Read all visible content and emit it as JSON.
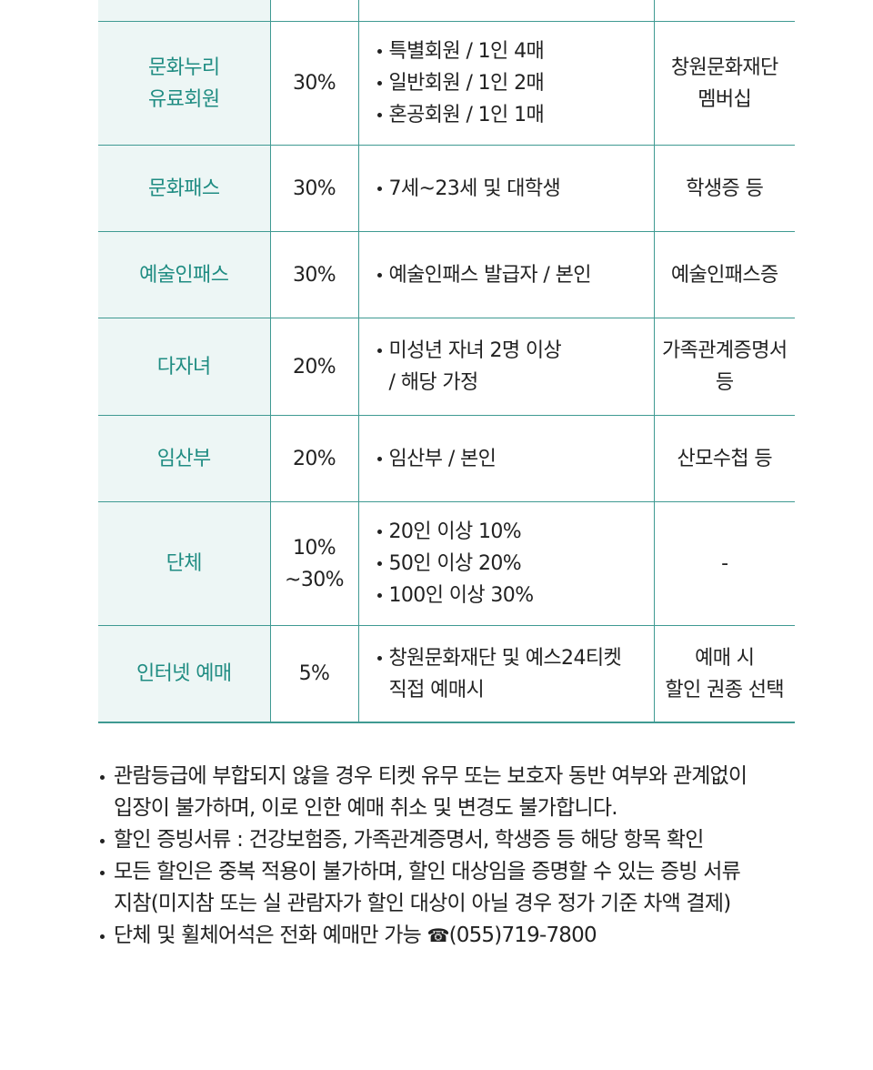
{
  "table": {
    "rows": [
      {
        "name": [
          "문화누리",
          "유료회원"
        ],
        "rate": [
          "30%"
        ],
        "desc": [
          {
            "text": "특별회원 / 1인 4매",
            "bullet": true
          },
          {
            "text": "일반회원 / 1인 2매",
            "bullet": true
          },
          {
            "text": "혼공회원 / 1인 1매",
            "bullet": true
          }
        ],
        "proof": [
          "창원문화재단",
          "멤버십"
        ]
      },
      {
        "name": [
          "문화패스"
        ],
        "rate": [
          "30%"
        ],
        "desc": [
          {
            "text": "7세~23세 및 대학생",
            "bullet": true
          }
        ],
        "proof": [
          "학생증 등"
        ]
      },
      {
        "name": [
          "예술인패스"
        ],
        "rate": [
          "30%"
        ],
        "desc": [
          {
            "text": "예술인패스 발급자 / 본인",
            "bullet": true
          }
        ],
        "proof": [
          "예술인패스증"
        ]
      },
      {
        "name": [
          "다자녀"
        ],
        "rate": [
          "20%"
        ],
        "desc": [
          {
            "text": "미성년 자녀 2명 이상",
            "bullet": true
          },
          {
            "text": "/ 해당 가정",
            "bullet": false
          }
        ],
        "proof": [
          "가족관계증명서",
          "등"
        ]
      },
      {
        "name": [
          "임산부"
        ],
        "rate": [
          "20%"
        ],
        "desc": [
          {
            "text": "임산부 / 본인",
            "bullet": true
          }
        ],
        "proof": [
          "산모수첩 등"
        ]
      },
      {
        "name": [
          "단체"
        ],
        "rate": [
          "10%",
          "~30%"
        ],
        "desc": [
          {
            "text": "20인 이상 10%",
            "bullet": true
          },
          {
            "text": "50인 이상 20%",
            "bullet": true
          },
          {
            "text": "100인 이상 30%",
            "bullet": true
          }
        ],
        "proof": [
          "-"
        ]
      },
      {
        "name": [
          "인터넷 예매"
        ],
        "rate": [
          "5%"
        ],
        "desc": [
          {
            "text": "창원문화재단 및 예스24티켓",
            "bullet": true
          },
          {
            "text": "직접 예매시",
            "bullet": false
          }
        ],
        "proof": [
          "예매 시",
          "할인 권종 선택"
        ]
      }
    ]
  },
  "notes": [
    {
      "lines": [
        "관람등급에 부합되지 않을 경우 티켓 유무 또는 보호자 동반 여부와 관계없이",
        "입장이 불가하며, 이로 인한 예매 취소 및 변경도 불가합니다."
      ]
    },
    {
      "lines": [
        "할인 증빙서류 : 건강보험증, 가족관계증명서, 학생증 등 해당 항목 확인"
      ]
    },
    {
      "lines": [
        "모든 할인은 중복 적용이 불가하며, 할인 대상임을 증명할 수 있는 증빙 서류",
        "지참(미지참 또는 실 관람자가 할인 대상이 아닐 경우 정가 기준 차액 결제)"
      ]
    },
    {
      "lines": [
        "단체 및 휠체어석은 전화 예매만 가능 "
      ],
      "phone": {
        "icon": "phone-icon",
        "glyph": "☎",
        "number": "(055)719-7800"
      }
    }
  ]
}
